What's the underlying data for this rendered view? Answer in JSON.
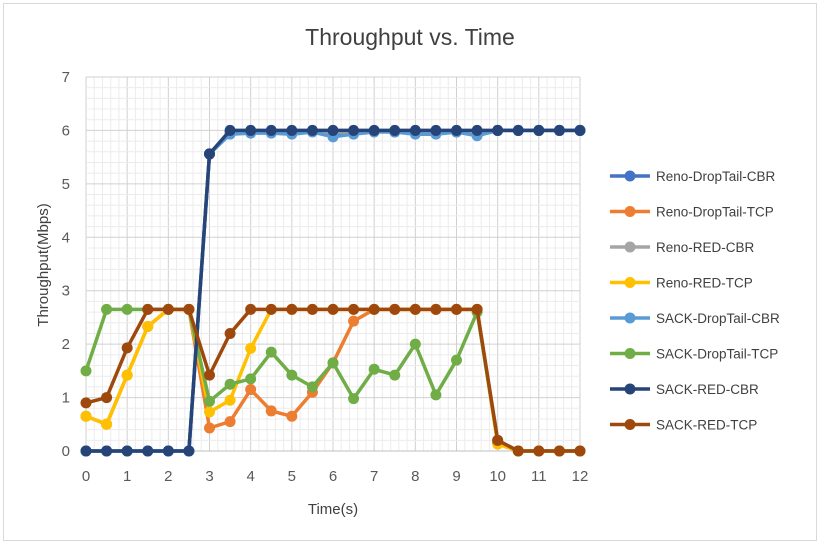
{
  "chart_data": {
    "type": "line",
    "title": "Throughput vs. Time",
    "xlabel": "Time(s)",
    "ylabel": "Throughput(Mbps)",
    "xlim": [
      0,
      12
    ],
    "ylim": [
      0,
      7
    ],
    "x_ticks": [
      "0",
      "1",
      "2",
      "3",
      "4",
      "5",
      "6",
      "7",
      "8",
      "9",
      "10",
      "11",
      "12"
    ],
    "y_ticks": [
      "0",
      "1",
      "2",
      "3",
      "4",
      "5",
      "6",
      "7"
    ],
    "grid": true,
    "legend_position": "right",
    "x": [
      0,
      0.5,
      1,
      1.5,
      2,
      2.5,
      3,
      3.5,
      4,
      4.5,
      5,
      5.5,
      6,
      6.5,
      7,
      7.5,
      8,
      8.5,
      9,
      9.5,
      10,
      10.5,
      11,
      11.5,
      12
    ],
    "series": [
      {
        "name": "Reno-DropTail-CBR",
        "color": "#4472c4",
        "values": [
          0,
          0,
          0,
          0,
          0,
          0,
          5.56,
          5.95,
          5.97,
          5.98,
          5.97,
          5.98,
          5.95,
          5.97,
          5.98,
          5.97,
          5.97,
          5.98,
          5.97,
          5.98,
          6,
          6,
          6,
          6,
          6
        ]
      },
      {
        "name": "Reno-DropTail-TCP",
        "color": "#ed7d31",
        "values": [
          0.65,
          0.5,
          1.42,
          2.33,
          2.65,
          2.65,
          0.43,
          0.55,
          1.15,
          0.75,
          0.65,
          1.1,
          1.65,
          2.43,
          2.65,
          2.65,
          2.65,
          2.65,
          2.65,
          2.65,
          0.15,
          0,
          0,
          0,
          0
        ]
      },
      {
        "name": "Reno-RED-CBR",
        "color": "#a5a5a5",
        "values": [
          0,
          0,
          0,
          0,
          0,
          0,
          5.56,
          5.97,
          5.98,
          5.98,
          5.98,
          5.98,
          5.97,
          5.97,
          5.98,
          5.98,
          5.98,
          5.98,
          5.98,
          5.98,
          6,
          6,
          6,
          6,
          6
        ]
      },
      {
        "name": "Reno-RED-TCP",
        "color": "#ffc000",
        "values": [
          0.65,
          0.5,
          1.42,
          2.33,
          2.65,
          2.65,
          0.73,
          0.95,
          1.92,
          2.65,
          2.65,
          2.65,
          2.65,
          2.65,
          2.65,
          2.65,
          2.65,
          2.65,
          2.65,
          2.65,
          0.13,
          0,
          0,
          0,
          0
        ]
      },
      {
        "name": "SACK-DropTail-CBR",
        "color": "#5b9bd5",
        "values": [
          0,
          0,
          0,
          0,
          0,
          0,
          5.56,
          5.93,
          5.95,
          5.95,
          5.93,
          5.97,
          5.88,
          5.93,
          5.97,
          5.97,
          5.93,
          5.93,
          5.97,
          5.9,
          6,
          6,
          6,
          6,
          6
        ]
      },
      {
        "name": "SACK-DropTail-TCP",
        "color": "#70ad47",
        "values": [
          1.5,
          2.65,
          2.65,
          2.65,
          2.65,
          2.65,
          0.93,
          1.25,
          1.35,
          1.85,
          1.42,
          1.2,
          1.65,
          0.98,
          1.53,
          1.42,
          2.0,
          1.05,
          1.7,
          2.6,
          0.2,
          0,
          0,
          0,
          0
        ]
      },
      {
        "name": "SACK-RED-CBR",
        "color": "#264478",
        "values": [
          0,
          0,
          0,
          0,
          0,
          0,
          5.56,
          6,
          6,
          6,
          6,
          6,
          6,
          6,
          6,
          6,
          6,
          6,
          6,
          6,
          6,
          6,
          6,
          6,
          6
        ]
      },
      {
        "name": "SACK-RED-TCP",
        "color": "#9e480e",
        "values": [
          0.9,
          1.0,
          1.93,
          2.65,
          2.65,
          2.65,
          1.42,
          2.2,
          2.65,
          2.65,
          2.65,
          2.65,
          2.65,
          2.65,
          2.65,
          2.65,
          2.65,
          2.65,
          2.65,
          2.65,
          0.2,
          0,
          0,
          0,
          0
        ]
      }
    ]
  }
}
